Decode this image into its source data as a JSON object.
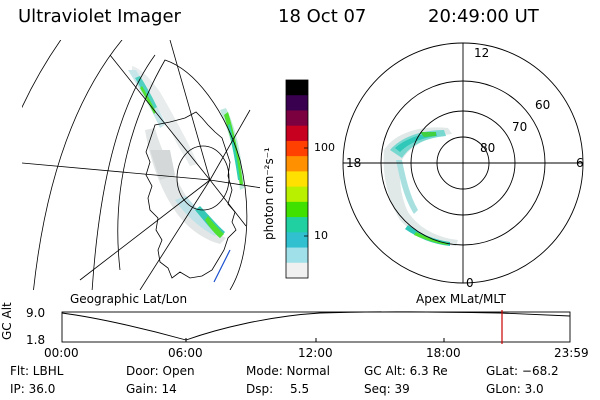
{
  "header": {
    "instrument": "Ultraviolet Imager",
    "date": "18 Oct 07",
    "time": "20:49:00 UT"
  },
  "left_panel": {
    "caption": "Geographic Lat/Lon"
  },
  "colorbar": {
    "unit_label": "photon cm⁻²s⁻¹",
    "ticks": [
      "100",
      "10"
    ],
    "colors": [
      "#000000",
      "#3a0050",
      "#7a0040",
      "#c80020",
      "#ff4000",
      "#ff9000",
      "#ffe000",
      "#b8f000",
      "#40e000",
      "#20d0a0",
      "#30c0d0",
      "#a0e0e8",
      "#f0f0f0"
    ]
  },
  "right_panel": {
    "caption": "Apex MLat/MLT",
    "mlt_labels": {
      "top": "12",
      "left": "18",
      "right": "6",
      "bottom": "0"
    },
    "lat_labels": [
      "60",
      "70",
      "80"
    ]
  },
  "altitude_plot": {
    "ylabel": "GC Alt",
    "yticks": [
      "9.0",
      "1.8"
    ],
    "xticks": [
      "00:00",
      "06:00",
      "12:00",
      "18:00",
      "23:59"
    ],
    "marker_color": "#cc0000"
  },
  "info": {
    "flt": "Flt: LBHL",
    "door": "Door: Open",
    "mode": "Mode: Normal",
    "gc_alt": "GC Alt: 6.3 Re",
    "glat": "GLat: −68.2",
    "ip": "IP: 36.0",
    "gain": "Gain: 14",
    "dsp_label": "Dsp:",
    "dsp_value": "5.5",
    "seq": "Seq: 39",
    "glon": "GLon:   3.0"
  }
}
